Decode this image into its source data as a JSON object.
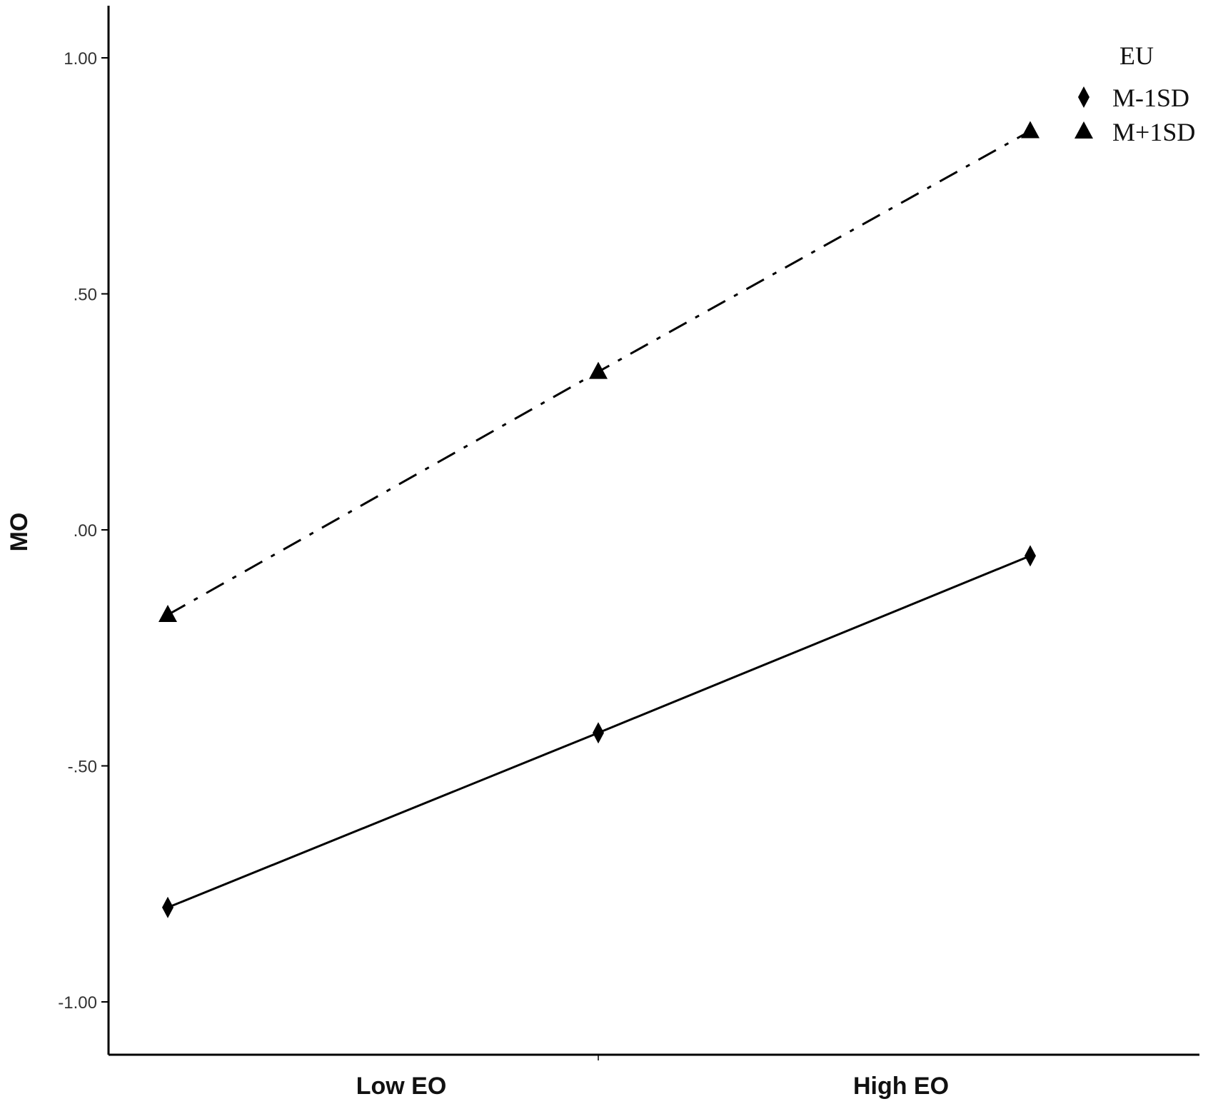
{
  "chart_data": {
    "type": "line",
    "x": [
      0,
      1,
      2
    ],
    "ylabel": "MO",
    "ylim": [
      -1.1,
      1.1
    ],
    "y_ticks": [
      1.0,
      0.5,
      0.0,
      -0.5,
      -1.0
    ],
    "y_tick_labels": [
      "1.00",
      ".50",
      ".00",
      "-.50",
      "-1.00"
    ],
    "x_tick_labels": [
      "Low EO",
      "High EO"
    ],
    "legend": {
      "title": "EU",
      "placement": "top-right"
    },
    "series": [
      {
        "name": "M-1SD",
        "marker": "diamond",
        "line": "solid",
        "values": [
          -0.8,
          -0.43,
          -0.055
        ]
      },
      {
        "name": "M+1SD",
        "marker": "triangle",
        "line": "dash-dot",
        "values": [
          -0.18,
          0.335,
          0.845
        ]
      }
    ]
  }
}
